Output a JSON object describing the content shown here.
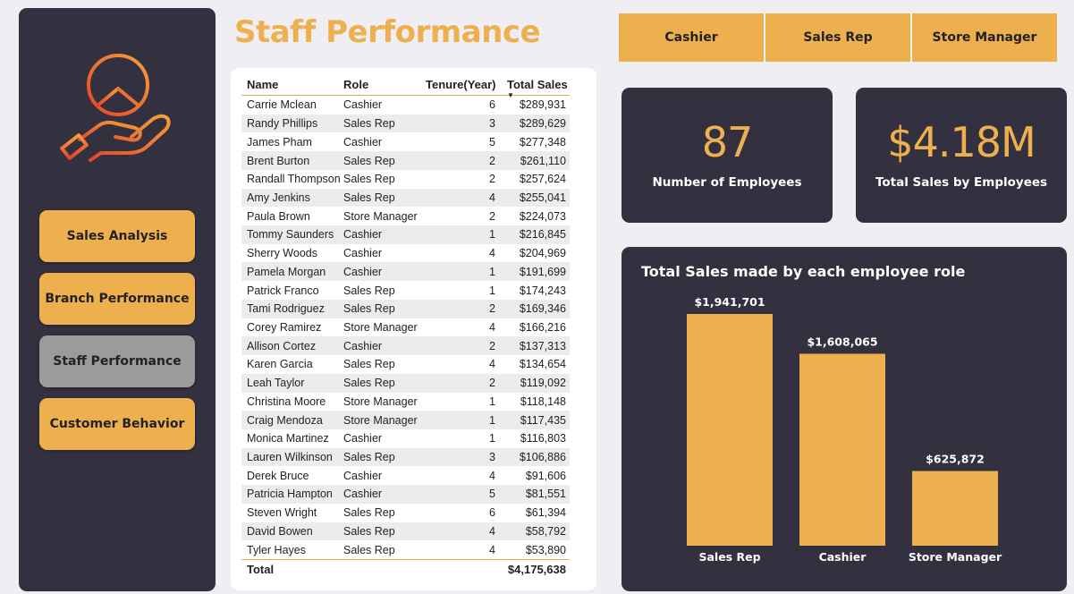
{
  "page": {
    "title": "Staff Performance"
  },
  "nav": {
    "items": [
      {
        "label": "Sales Analysis",
        "active": false
      },
      {
        "label": "Branch Performance",
        "active": false
      },
      {
        "label": "Staff Performance",
        "active": true
      },
      {
        "label": "Customer Behavior",
        "active": false
      }
    ]
  },
  "filters": {
    "items": [
      "Cashier",
      "Sales Rep",
      "Store Manager"
    ]
  },
  "table": {
    "headers": {
      "name": "Name",
      "role": "Role",
      "tenure": "Tenure(Year)",
      "sales": "Total Sales"
    },
    "sorted_column": "Total Sales",
    "sort_direction": "descending",
    "rows": [
      {
        "name": "Carrie Mclean",
        "role": "Cashier",
        "tenure": "6",
        "sales": "$289,931"
      },
      {
        "name": "Randy Phillips",
        "role": "Sales Rep",
        "tenure": "3",
        "sales": "$289,629"
      },
      {
        "name": "James Pham",
        "role": "Cashier",
        "tenure": "5",
        "sales": "$277,348"
      },
      {
        "name": "Brent Burton",
        "role": "Sales Rep",
        "tenure": "2",
        "sales": "$261,110"
      },
      {
        "name": "Randall Thompson",
        "role": "Sales Rep",
        "tenure": "2",
        "sales": "$257,624"
      },
      {
        "name": "Amy Jenkins",
        "role": "Sales Rep",
        "tenure": "4",
        "sales": "$255,041"
      },
      {
        "name": "Paula Brown",
        "role": "Store Manager",
        "tenure": "2",
        "sales": "$224,073"
      },
      {
        "name": "Tommy Saunders",
        "role": "Cashier",
        "tenure": "1",
        "sales": "$216,845"
      },
      {
        "name": "Sherry Woods",
        "role": "Cashier",
        "tenure": "4",
        "sales": "$204,969"
      },
      {
        "name": "Pamela Morgan",
        "role": "Cashier",
        "tenure": "1",
        "sales": "$191,699"
      },
      {
        "name": "Patrick Franco",
        "role": "Sales Rep",
        "tenure": "1",
        "sales": "$174,243"
      },
      {
        "name": "Tami Rodriguez",
        "role": "Sales Rep",
        "tenure": "2",
        "sales": "$169,346"
      },
      {
        "name": "Corey Ramirez",
        "role": "Store Manager",
        "tenure": "4",
        "sales": "$166,216"
      },
      {
        "name": "Allison Cortez",
        "role": "Cashier",
        "tenure": "2",
        "sales": "$137,313"
      },
      {
        "name": "Karen Garcia",
        "role": "Sales Rep",
        "tenure": "4",
        "sales": "$134,654"
      },
      {
        "name": "Leah Taylor",
        "role": "Sales Rep",
        "tenure": "2",
        "sales": "$119,092"
      },
      {
        "name": "Christina Moore",
        "role": "Store Manager",
        "tenure": "1",
        "sales": "$118,148"
      },
      {
        "name": "Craig Mendoza",
        "role": "Store Manager",
        "tenure": "1",
        "sales": "$117,435"
      },
      {
        "name": "Monica Martinez",
        "role": "Cashier",
        "tenure": "1",
        "sales": "$116,803"
      },
      {
        "name": "Lauren Wilkinson",
        "role": "Sales Rep",
        "tenure": "3",
        "sales": "$106,886"
      },
      {
        "name": "Derek Bruce",
        "role": "Cashier",
        "tenure": "4",
        "sales": "$91,606"
      },
      {
        "name": "Patricia Hampton",
        "role": "Cashier",
        "tenure": "5",
        "sales": "$81,551"
      },
      {
        "name": "Steven Wright",
        "role": "Sales Rep",
        "tenure": "6",
        "sales": "$61,394"
      },
      {
        "name": "David Bowen",
        "role": "Sales Rep",
        "tenure": "4",
        "sales": "$58,792"
      },
      {
        "name": "Tyler Hayes",
        "role": "Sales Rep",
        "tenure": "4",
        "sales": "$53,890"
      }
    ],
    "footer": {
      "label": "Total",
      "sales": "$4,175,638"
    }
  },
  "kpis": {
    "employees": {
      "value": "87",
      "label": "Number of Employees"
    },
    "total_sales": {
      "value": "$4.18M",
      "label": "Total Sales by Employees"
    }
  },
  "colors": {
    "accent": "#eeb04f",
    "card_dark": "#33303f",
    "nav_active": "#9b9b9b",
    "background": "#efeef3"
  },
  "chart_data": {
    "type": "bar",
    "title": "Total Sales made by each employee role",
    "categories": [
      "Sales Rep",
      "Cashier",
      "Store Manager"
    ],
    "values": [
      1941701,
      1608065,
      625872
    ],
    "data_labels": [
      "$1,941,701",
      "$1,608,065",
      "$625,872"
    ],
    "ylim": [
      0,
      1941701
    ],
    "grid": false,
    "legend": "none",
    "bar_color": "#eeb04f"
  }
}
